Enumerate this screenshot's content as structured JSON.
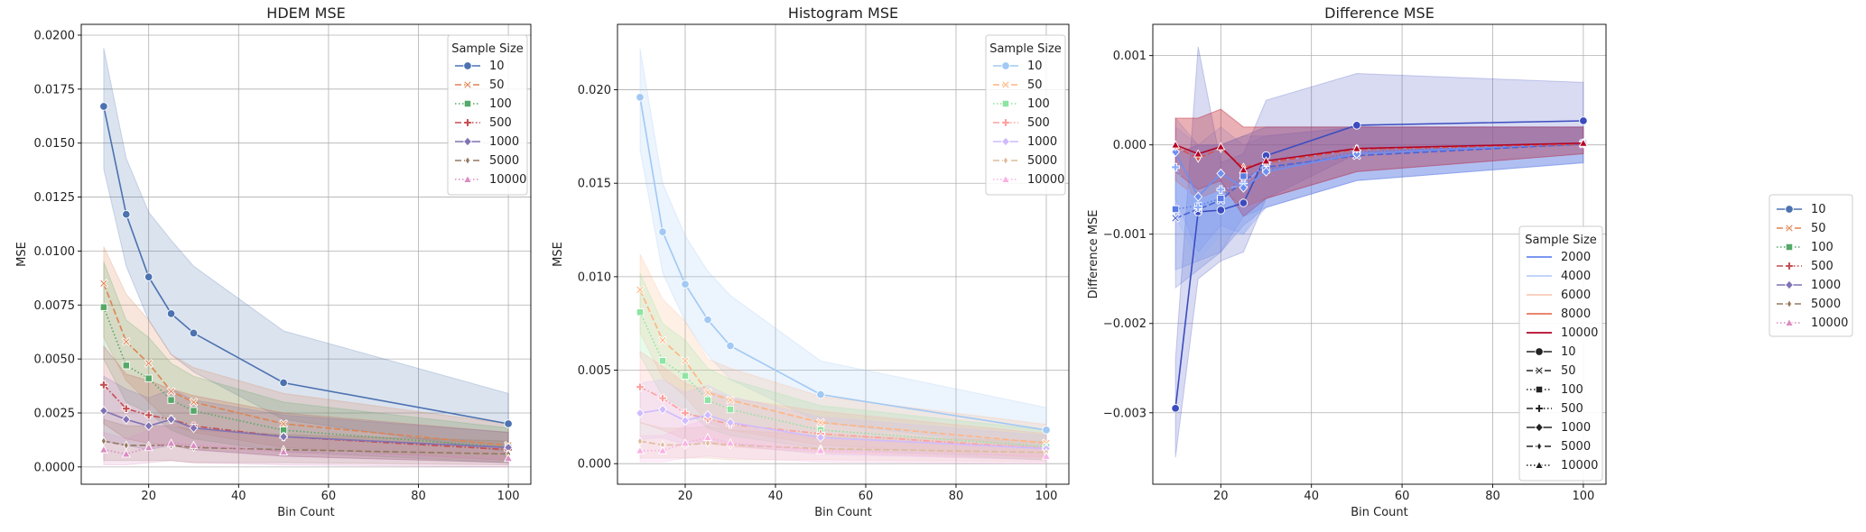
{
  "chart_data": [
    {
      "type": "line",
      "title": "HDEM MSE",
      "xlabel": "Bin Count",
      "ylabel": "MSE",
      "xlim": [
        5,
        105
      ],
      "ylim": [
        -0.0008,
        0.0205
      ],
      "xticks": [
        20,
        40,
        60,
        80,
        100
      ],
      "yticks": [
        0.0,
        0.0025,
        0.005,
        0.0075,
        0.01,
        0.0125,
        0.015,
        0.0175,
        0.02
      ],
      "ytick_labels": [
        "0.0000",
        "0.0025",
        "0.0050",
        "0.0075",
        "0.0100",
        "0.0125",
        "0.0150",
        "0.0175",
        "0.0200"
      ],
      "grid": true,
      "legend": {
        "title": "Sample Size",
        "placement": "top-right"
      },
      "x": [
        10,
        15,
        20,
        25,
        30,
        50,
        100
      ],
      "series": [
        {
          "name": "10",
          "color": "#4c72b0",
          "dash": "solid",
          "marker": "circle",
          "values": [
            0.0167,
            0.0117,
            0.0088,
            0.0071,
            0.0062,
            0.0039,
            0.002
          ],
          "lower": [
            0.0138,
            0.0093,
            0.0068,
            0.0052,
            0.0044,
            0.0022,
            0.0007
          ],
          "upper": [
            0.0194,
            0.0143,
            0.0118,
            0.0105,
            0.0093,
            0.0063,
            0.0034
          ]
        },
        {
          "name": "50",
          "color": "#dd8452",
          "dash": "dashed",
          "marker": "x",
          "values": [
            0.0085,
            0.0058,
            0.0048,
            0.0035,
            0.003,
            0.002,
            0.001
          ],
          "lower": [
            0.006,
            0.004,
            0.003,
            0.002,
            0.0016,
            0.0009,
            0.0003
          ],
          "upper": [
            0.0102,
            0.008,
            0.0068,
            0.0052,
            0.0046,
            0.0034,
            0.002
          ]
        },
        {
          "name": "100",
          "color": "#55a868",
          "dash": "dotted",
          "marker": "square",
          "values": [
            0.0074,
            0.0047,
            0.0041,
            0.0031,
            0.0026,
            0.0017,
            0.0009
          ],
          "lower": [
            0.005,
            0.003,
            0.0025,
            0.0017,
            0.0013,
            0.0007,
            0.0002
          ],
          "upper": [
            0.0095,
            0.0068,
            0.006,
            0.0048,
            0.0042,
            0.003,
            0.0018
          ]
        },
        {
          "name": "500",
          "color": "#c44e52",
          "dash": "dashdot",
          "marker": "plus",
          "values": [
            0.0038,
            0.0027,
            0.0024,
            0.0022,
            0.0019,
            0.0014,
            0.0008
          ],
          "lower": [
            0.002,
            0.0013,
            0.0011,
            0.001,
            0.0008,
            0.0005,
            0.0002
          ],
          "upper": [
            0.0056,
            0.0043,
            0.004,
            0.0036,
            0.0033,
            0.0025,
            0.0016
          ]
        },
        {
          "name": "1000",
          "color": "#8172b3",
          "dash": "solid",
          "marker": "diamond",
          "values": [
            0.0026,
            0.0022,
            0.0019,
            0.0022,
            0.0018,
            0.0014,
            0.0009
          ],
          "lower": [
            0.0012,
            0.001,
            0.0008,
            0.001,
            0.0008,
            0.0005,
            0.0002
          ],
          "upper": [
            0.0042,
            0.0036,
            0.0032,
            0.0036,
            0.0031,
            0.0024,
            0.0016
          ]
        },
        {
          "name": "5000",
          "color": "#937860",
          "dash": "dashed",
          "marker": "thin_diamond",
          "values": [
            0.0012,
            0.001,
            0.001,
            0.001,
            0.0009,
            0.0008,
            0.0006
          ],
          "lower": [
            0.0003,
            0.0003,
            0.0003,
            0.0003,
            0.0002,
            0.0002,
            0.0001
          ],
          "upper": [
            0.0022,
            0.0019,
            0.0019,
            0.0019,
            0.0017,
            0.0015,
            0.0012
          ]
        },
        {
          "name": "10000",
          "color": "#da8bc3",
          "dash": "dotted",
          "marker": "triangle",
          "values": [
            0.0008,
            0.0006,
            0.0009,
            0.0011,
            0.001,
            0.0007,
            0.0004
          ],
          "lower": [
            0.0001,
            0.0001,
            0.0002,
            0.0003,
            0.0002,
            0.0001,
            0.0
          ],
          "upper": [
            0.0016,
            0.0013,
            0.0017,
            0.002,
            0.0018,
            0.0014,
            0.0009
          ]
        }
      ]
    },
    {
      "type": "line",
      "title": "Histogram MSE",
      "xlabel": "Bin Count",
      "ylabel": "MSE",
      "xlim": [
        5,
        105
      ],
      "ylim": [
        -0.0011,
        0.0235
      ],
      "xticks": [
        20,
        40,
        60,
        80,
        100
      ],
      "yticks": [
        0.0,
        0.005,
        0.01,
        0.015,
        0.02
      ],
      "ytick_labels": [
        "0.000",
        "0.005",
        "0.010",
        "0.015",
        "0.020"
      ],
      "grid": true,
      "legend": {
        "title": "Sample Size",
        "placement": "top-right"
      },
      "x": [
        10,
        15,
        20,
        25,
        30,
        50,
        100
      ],
      "series": [
        {
          "name": "10",
          "color": "#a1c9f4",
          "dash": "solid",
          "marker": "circle",
          "values": [
            0.0196,
            0.0124,
            0.0096,
            0.0077,
            0.0063,
            0.0037,
            0.0018
          ],
          "lower": [
            0.0168,
            0.0102,
            0.0076,
            0.0058,
            0.0045,
            0.0022,
            0.0008
          ],
          "upper": [
            0.0222,
            0.015,
            0.0122,
            0.0103,
            0.009,
            0.0055,
            0.003
          ]
        },
        {
          "name": "50",
          "color": "#ffb482",
          "dash": "dashed",
          "marker": "x",
          "values": [
            0.0093,
            0.0066,
            0.0055,
            0.0038,
            0.0034,
            0.0022,
            0.0011
          ],
          "lower": [
            0.007,
            0.0046,
            0.0036,
            0.0022,
            0.0018,
            0.001,
            0.0003
          ],
          "upper": [
            0.0112,
            0.0088,
            0.0076,
            0.0056,
            0.0051,
            0.0036,
            0.0021
          ]
        },
        {
          "name": "100",
          "color": "#8de5a1",
          "dash": "dotted",
          "marker": "square",
          "values": [
            0.0081,
            0.0055,
            0.0047,
            0.0034,
            0.0029,
            0.0018,
            0.0009
          ],
          "lower": [
            0.0058,
            0.0036,
            0.0029,
            0.0019,
            0.0015,
            0.0008,
            0.0002
          ],
          "upper": [
            0.0102,
            0.0075,
            0.0066,
            0.0051,
            0.0045,
            0.0031,
            0.0018
          ]
        },
        {
          "name": "500",
          "color": "#ff9f9b",
          "dash": "dashdot",
          "marker": "plus",
          "values": [
            0.0041,
            0.0035,
            0.0027,
            0.0024,
            0.0021,
            0.0016,
            0.0008
          ],
          "lower": [
            0.0022,
            0.0018,
            0.0013,
            0.0011,
            0.0009,
            0.0006,
            0.0002
          ],
          "upper": [
            0.006,
            0.0052,
            0.0043,
            0.0039,
            0.0035,
            0.0028,
            0.0016
          ]
        },
        {
          "name": "1000",
          "color": "#d0bbff",
          "dash": "solid",
          "marker": "diamond",
          "values": [
            0.0027,
            0.0029,
            0.0023,
            0.0026,
            0.0022,
            0.0014,
            0.0008
          ],
          "lower": [
            0.0013,
            0.0014,
            0.001,
            0.0012,
            0.001,
            0.0005,
            0.0002
          ],
          "upper": [
            0.0043,
            0.0045,
            0.0038,
            0.0042,
            0.0036,
            0.0025,
            0.0015
          ]
        },
        {
          "name": "5000",
          "color": "#debb9b",
          "dash": "dashed",
          "marker": "thin_diamond",
          "values": [
            0.0012,
            0.001,
            0.001,
            0.0011,
            0.001,
            0.0008,
            0.0006
          ],
          "lower": [
            0.0003,
            0.0003,
            0.0003,
            0.0003,
            0.0002,
            0.0002,
            0.0001
          ],
          "upper": [
            0.0022,
            0.0019,
            0.0019,
            0.002,
            0.0018,
            0.0015,
            0.0012
          ]
        },
        {
          "name": "10000",
          "color": "#fab0e4",
          "dash": "dotted",
          "marker": "triangle",
          "values": [
            0.0007,
            0.0007,
            0.0011,
            0.0014,
            0.0011,
            0.0007,
            0.0004
          ],
          "lower": [
            0.0001,
            0.0001,
            0.0003,
            0.0004,
            0.0003,
            0.0001,
            0.0
          ],
          "upper": [
            0.0015,
            0.0015,
            0.002,
            0.0024,
            0.002,
            0.0014,
            0.0009
          ]
        }
      ]
    },
    {
      "type": "line",
      "title": "Difference MSE",
      "xlabel": "Bin Count",
      "ylabel": "Difference MSE",
      "xlim": [
        5,
        105
      ],
      "ylim": [
        -0.0038,
        0.00135
      ],
      "xticks": [
        20,
        40,
        60,
        80,
        100
      ],
      "yticks": [
        -0.003,
        -0.002,
        -0.001,
        0.0,
        0.001
      ],
      "ytick_labels": [
        "−0.003",
        "−0.002",
        "−0.001",
        "0.000",
        "0.001"
      ],
      "grid": true,
      "legend": {
        "title": "Sample Size",
        "placement": "lower-right"
      },
      "legend_hue": [
        {
          "name": "2000",
          "color": "#6788ee"
        },
        {
          "name": "4000",
          "color": "#b9d0f9"
        },
        {
          "name": "6000",
          "color": "#f6cbb7"
        },
        {
          "name": "8000",
          "color": "#e7745b"
        },
        {
          "name": "10000",
          "color": "#b40426"
        }
      ],
      "legend_style": [
        {
          "name": "10",
          "dash": "solid",
          "marker": "circle"
        },
        {
          "name": "50",
          "dash": "dashed",
          "marker": "x"
        },
        {
          "name": "100",
          "dash": "dotted",
          "marker": "square"
        },
        {
          "name": "500",
          "dash": "dashdot",
          "marker": "plus"
        },
        {
          "name": "1000",
          "dash": "solid",
          "marker": "diamond"
        },
        {
          "name": "5000",
          "dash": "dashed",
          "marker": "thin_diamond"
        },
        {
          "name": "10000",
          "dash": "dotted",
          "marker": "triangle"
        }
      ],
      "x": [
        10,
        15,
        20,
        25,
        30,
        50,
        100
      ],
      "series": [
        {
          "name": "10",
          "color": "#3b4cc0",
          "dash": "solid",
          "marker": "circle",
          "values": [
            -0.00295,
            -0.00075,
            -0.00073,
            -0.00065,
            -0.00012,
            0.00022,
            0.00027
          ],
          "lower": [
            -0.0035,
            -0.0015,
            -0.0013,
            -0.0012,
            -0.0006,
            -0.0001,
            0.0
          ],
          "upper": [
            -0.0024,
            0.0011,
            -0.0002,
            -0.0001,
            0.0005,
            0.0008,
            0.0007
          ]
        },
        {
          "name": "50",
          "color": "#4a63d3",
          "dash": "dashed",
          "marker": "x",
          "values": [
            -0.00082,
            -0.00072,
            -0.00062,
            -0.0004,
            -0.00025,
            -0.00012,
            1e-05
          ],
          "lower": [
            -0.0016,
            -0.0014,
            -0.0012,
            -0.0009,
            -0.0007,
            -0.0004,
            -0.0002
          ],
          "upper": [
            -0.0001,
            0.0,
            0.0,
            0.0001,
            0.0002,
            0.0002,
            0.0002
          ]
        },
        {
          "name": "100",
          "color": "#5b7ae5",
          "dash": "dotted",
          "marker": "square",
          "values": [
            -0.00072,
            -0.00068,
            -0.0006,
            -0.00035,
            -0.00028,
            -8e-05,
            2e-05
          ],
          "lower": [
            -0.0014,
            -0.0013,
            -0.0012,
            -0.0008,
            -0.0007,
            -0.0004,
            -0.0002
          ],
          "upper": [
            -0.0001,
            0.0,
            0.0,
            0.0001,
            0.0001,
            0.0002,
            0.0002
          ]
        },
        {
          "name": "500",
          "color": "#8badfd",
          "dash": "dashdot",
          "marker": "plus",
          "values": [
            -0.00025,
            -0.0007,
            -0.0005,
            -0.00045,
            -0.0002,
            -5e-05,
            2e-05
          ],
          "lower": [
            -0.0008,
            -0.0013,
            -0.001,
            -0.001,
            -0.0006,
            -0.0003,
            -0.0001
          ],
          "upper": [
            0.0002,
            0.0,
            0.0,
            0.0001,
            0.0002,
            0.0002,
            0.0002
          ]
        },
        {
          "name": "1000",
          "color": "#6f8ff0",
          "dash": "solid",
          "marker": "diamond",
          "values": [
            -8e-05,
            -0.00058,
            -0.00032,
            -0.00048,
            -0.0003,
            -0.0001,
            2e-05
          ],
          "lower": [
            -0.0006,
            -0.0012,
            -0.0009,
            -0.001,
            -0.0007,
            -0.0004,
            -0.0002
          ],
          "upper": [
            0.0003,
            0.0,
            0.0002,
            0.0,
            0.0001,
            0.0002,
            0.0002
          ]
        },
        {
          "name": "5000",
          "color": "#d75445",
          "dash": "dashed",
          "marker": "thin_diamond",
          "values": [
            -2e-05,
            -0.00015,
            -4e-05,
            -0.00025,
            -0.0002,
            -5e-05,
            1e-05
          ],
          "lower": [
            -0.0004,
            -0.0006,
            -0.0005,
            -0.0007,
            -0.0006,
            -0.0003,
            -0.0001
          ],
          "upper": [
            0.0003,
            0.0003,
            0.0004,
            0.0002,
            0.0002,
            0.0002,
            0.0002
          ]
        },
        {
          "name": "10000",
          "color": "#b40426",
          "dash": "solid",
          "marker": "triangle",
          "values": [
            0.0,
            -0.0001,
            -2e-05,
            -0.00028,
            -0.00018,
            -4e-05,
            2e-05
          ],
          "lower": [
            -0.0003,
            -0.0005,
            -0.0004,
            -0.0008,
            -0.0006,
            -0.0003,
            -0.0001
          ],
          "upper": [
            0.0003,
            0.0003,
            0.0004,
            0.0002,
            0.0002,
            0.0002,
            0.0002
          ]
        }
      ]
    }
  ],
  "figure_legend": {
    "placement": "right",
    "items": [
      {
        "name": "10",
        "color": "#4c72b0",
        "dash": "solid",
        "marker": "circle"
      },
      {
        "name": "50",
        "color": "#dd8452",
        "dash": "dashed",
        "marker": "x"
      },
      {
        "name": "100",
        "color": "#55a868",
        "dash": "dotted",
        "marker": "square"
      },
      {
        "name": "500",
        "color": "#c44e52",
        "dash": "dashdot",
        "marker": "plus"
      },
      {
        "name": "1000",
        "color": "#8172b3",
        "dash": "solid",
        "marker": "diamond"
      },
      {
        "name": "5000",
        "color": "#937860",
        "dash": "dashed",
        "marker": "thin_diamond"
      },
      {
        "name": "10000",
        "color": "#da8bc3",
        "dash": "dotted",
        "marker": "triangle"
      }
    ]
  }
}
